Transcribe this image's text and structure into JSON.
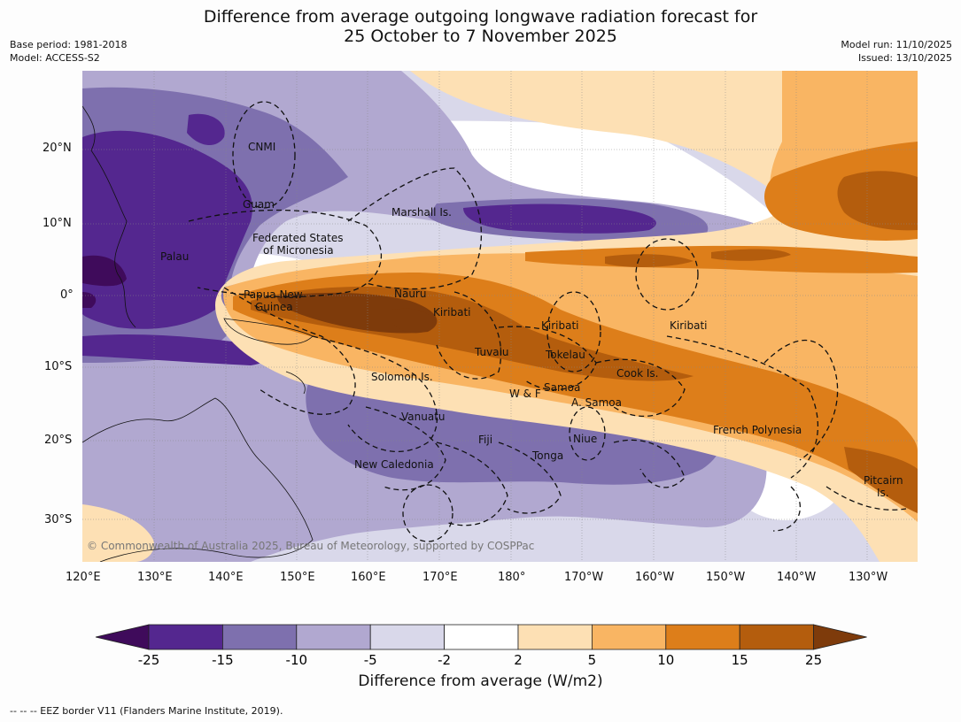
{
  "title_line1": "Difference from average outgoing longwave radiation forecast for",
  "title_line2": "25 October to 7 November 2025",
  "base_period": "Base period: 1981-2018",
  "model": "Model: ACCESS-S2",
  "model_run": "Model run: 11/10/2025",
  "issued": "Issued: 13/10/2025",
  "copyright": "© Commonwealth of Australia 2025, Bureau of Meteorology, supported by COSPPac",
  "footer": "--  --  -- EEZ border V11 (Flanders Marine Institute, 2019).",
  "lat_labels": [
    "20°N",
    "10°N",
    "0°",
    "10°S",
    "20°S",
    "30°S"
  ],
  "lon_labels": [
    "120°E",
    "130°E",
    "140°E",
    "150°E",
    "160°E",
    "170°E",
    "180°",
    "170°W",
    "160°W",
    "150°W",
    "140°W",
    "130°W"
  ],
  "region_labels": {
    "cnmi": "CNMI",
    "guam": "Guam",
    "marshall": "Marshall Is.",
    "fsm_1": "Federated States",
    "fsm_2": "of Micronesia",
    "palau": "Palau",
    "png_1": "Papua New",
    "png_2": "Guinea",
    "nauru": "Nauru",
    "kiribati_west": "Kiribati",
    "kiribati_central": "Kiribati",
    "kiribati_east": "Kiribati",
    "tuvalu": "Tuvalu",
    "tokelau": "Tokelau",
    "cook": "Cook Is.",
    "solomon": "Solomon Is.",
    "wf": "W & F",
    "samoa": "Samoa",
    "asamoa": "A. Samoa",
    "vanuatu": "Vanuatu",
    "fiji": "Fiji",
    "niue": "Niue",
    "tonga": "Tonga",
    "french_polynesia": "French Polynesia",
    "new_caledonia": "New Caledonia",
    "pitcairn_1": "Pitcairn",
    "pitcairn_2": "Is."
  },
  "colorbar": {
    "ticks": [
      "-25",
      "-15",
      "-10",
      "-5",
      "-2",
      "2",
      "5",
      "10",
      "15",
      "25"
    ],
    "colors": [
      "#3f0b5b",
      "#54278f",
      "#7e70ae",
      "#b1a8d0",
      "#d9d8ea",
      "#ffffff",
      "#fde0b4",
      "#f9b563",
      "#dd7e1a",
      "#b45d0d",
      "#7e3b0b"
    ],
    "label": "Difference from average (W/m2)"
  }
}
